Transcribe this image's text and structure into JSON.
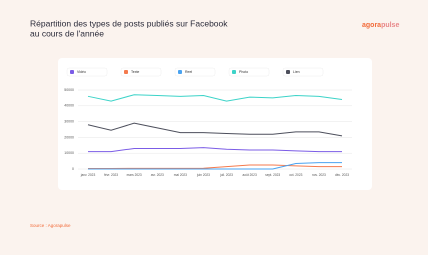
{
  "chart_data": {
    "type": "line",
    "title": "Répartition des types de posts publiés sur Facebook",
    "subtitle": "au cours de l'année",
    "brand": [
      "agora",
      "pulse"
    ],
    "source": "Source : Agorapulse",
    "categories": [
      "janv. 2023",
      "févr. 2023",
      "mars 2023",
      "avr. 2023",
      "mai 2023",
      "juin 2023",
      "juil. 2023",
      "août 2023",
      "sept. 2023",
      "oct. 2023",
      "nov. 2023",
      "déc. 2023"
    ],
    "ylim": [
      0,
      50000
    ],
    "yticks": [
      0,
      10000,
      20000,
      30000,
      40000,
      50000
    ],
    "grid": true,
    "series": [
      {
        "name": "Vidéo",
        "color": "#7b5ce6",
        "values": [
          11000,
          11000,
          13000,
          13000,
          13000,
          13500,
          12500,
          12000,
          12000,
          11500,
          11000,
          11000
        ]
      },
      {
        "name": "Texte",
        "color": "#f47a4d",
        "values": [
          300,
          300,
          400,
          400,
          400,
          500,
          1500,
          2500,
          2500,
          2000,
          1500,
          1500
        ]
      },
      {
        "name": "Reel",
        "color": "#4aa3f0",
        "values": [
          0,
          0,
          0,
          0,
          0,
          0,
          0,
          0,
          0,
          3500,
          4000,
          4000
        ]
      },
      {
        "name": "Photo",
        "color": "#3cd3c8",
        "values": [
          46000,
          43000,
          47000,
          46500,
          46000,
          46500,
          43000,
          45500,
          45000,
          46500,
          46000,
          44000
        ]
      },
      {
        "name": "Lien",
        "color": "#4d4f5c",
        "values": [
          28000,
          24500,
          29000,
          26000,
          23000,
          23000,
          22500,
          22000,
          22000,
          23500,
          23500,
          21000
        ]
      }
    ]
  }
}
